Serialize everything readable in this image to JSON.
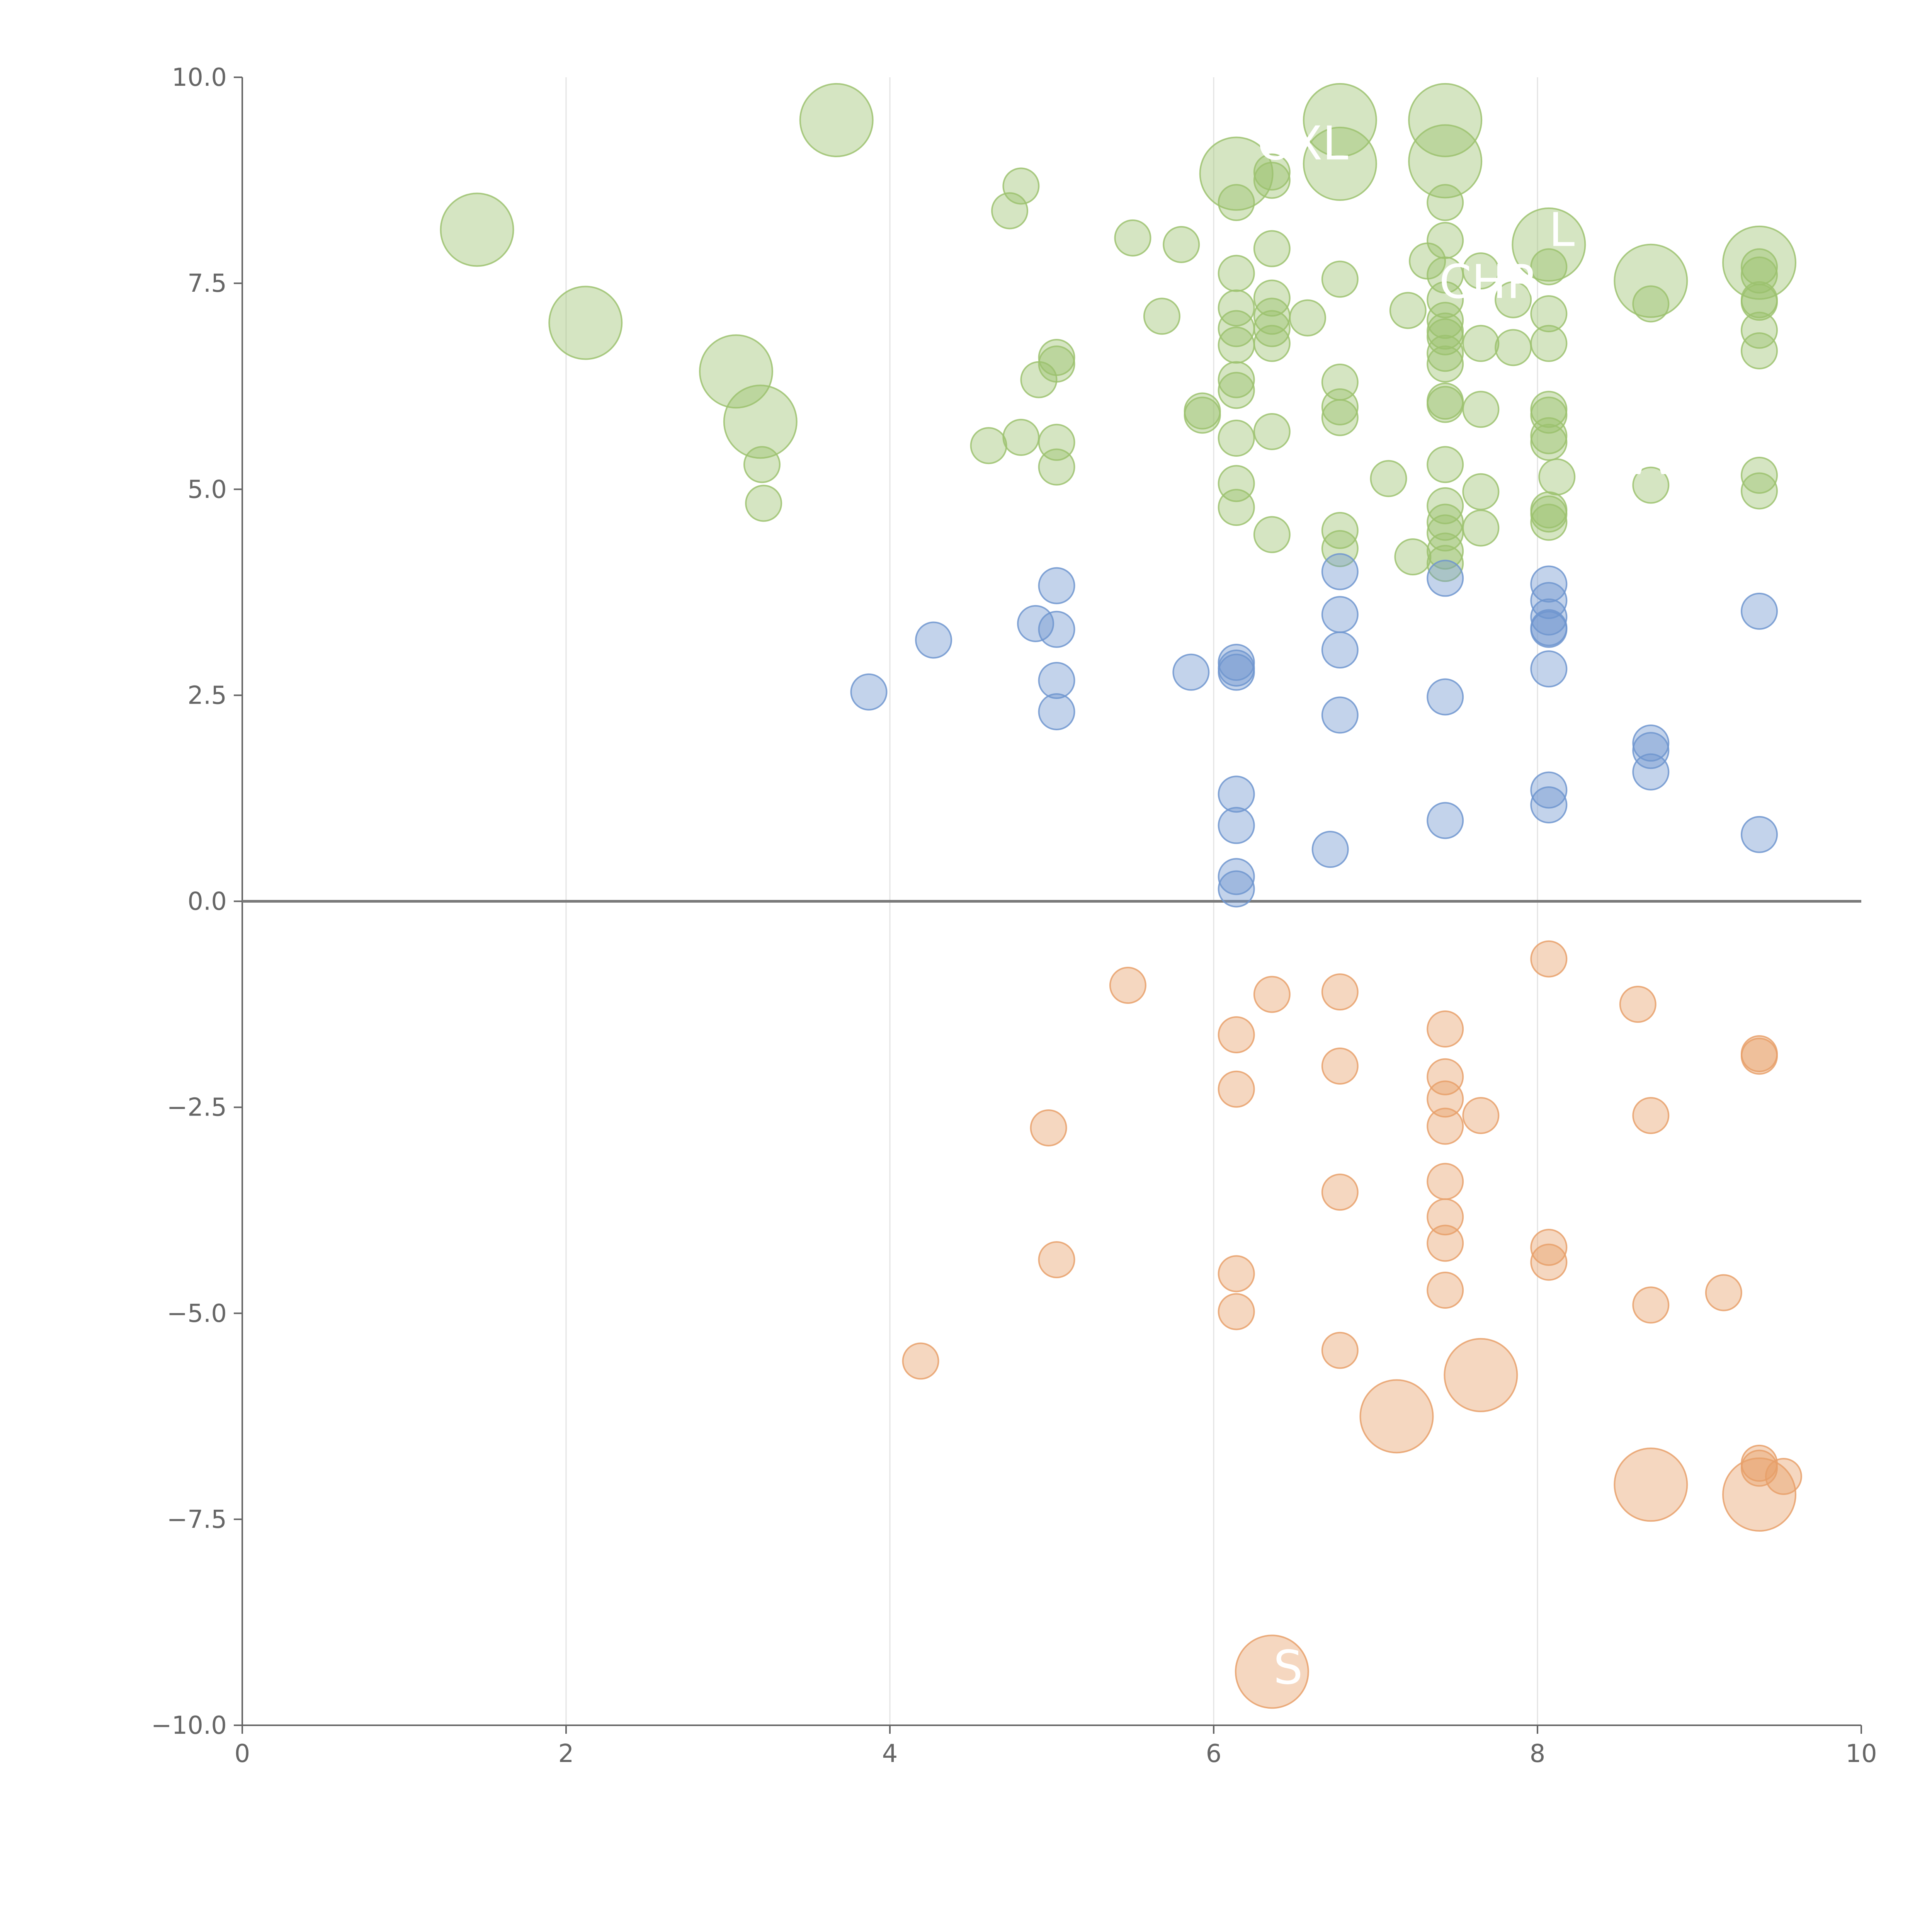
{
  "chart_data": {
    "type": "scatter",
    "title": "",
    "xlabel": "",
    "ylabel": "",
    "xlim": [
      0,
      10
    ],
    "ylim": [
      -10,
      10
    ],
    "x_ticks": [
      "0",
      "2",
      "4",
      "6",
      "8",
      "10"
    ],
    "y_ticks": [
      "−10.0",
      "−7.5",
      "−5.0",
      "−2.5",
      "0.0",
      "2.5",
      "5.0",
      "7.5",
      "10.0"
    ],
    "grid": "vertical",
    "zero_line": true,
    "colors": {
      "green": "#9cc26e",
      "blue": "#6f95cf",
      "orange": "#e8a06a"
    },
    "series": [
      {
        "name": "green",
        "points": [
          [
            1.45,
            8.15,
            "lg"
          ],
          [
            2.12,
            7.02,
            "lg"
          ],
          [
            3.05,
            6.43,
            "lg"
          ],
          [
            3.2,
            5.82,
            "lg"
          ],
          [
            3.67,
            9.48,
            "lg"
          ],
          [
            3.21,
            5.3,
            "s"
          ],
          [
            3.22,
            4.83,
            "s"
          ],
          [
            4.74,
            8.38,
            "s"
          ],
          [
            4.81,
            8.68,
            "s"
          ],
          [
            4.61,
            5.53,
            "s"
          ],
          [
            4.81,
            5.63,
            "s"
          ],
          [
            4.92,
            6.33,
            "s"
          ],
          [
            5.03,
            6.6,
            "s"
          ],
          [
            5.03,
            6.52,
            "s"
          ],
          [
            5.03,
            5.57,
            "s"
          ],
          [
            5.03,
            5.27,
            "s"
          ],
          [
            5.5,
            8.05,
            "s"
          ],
          [
            5.68,
            7.1,
            "s"
          ],
          [
            5.8,
            7.97,
            "s"
          ],
          [
            5.93,
            5.95,
            "s"
          ],
          [
            5.93,
            5.9,
            "s"
          ],
          [
            6.14,
            8.83,
            "lg"
          ],
          [
            6.14,
            8.48,
            "s"
          ],
          [
            6.14,
            7.62,
            "s"
          ],
          [
            6.14,
            7.2,
            "s"
          ],
          [
            6.14,
            6.95,
            "s"
          ],
          [
            6.14,
            6.75,
            "s"
          ],
          [
            6.14,
            6.33,
            "s"
          ],
          [
            6.14,
            6.2,
            "s"
          ],
          [
            6.14,
            5.62,
            "s"
          ],
          [
            6.14,
            5.07,
            "s"
          ],
          [
            6.14,
            4.78,
            "s"
          ],
          [
            6.36,
            8.85,
            "s"
          ],
          [
            6.36,
            8.75,
            "s"
          ],
          [
            6.36,
            7.92,
            "s"
          ],
          [
            6.36,
            7.32,
            "s"
          ],
          [
            6.36,
            7.1,
            "s"
          ],
          [
            6.36,
            6.95,
            "s"
          ],
          [
            6.36,
            6.77,
            "s"
          ],
          [
            6.36,
            5.7,
            "s"
          ],
          [
            6.36,
            4.45,
            "s"
          ],
          [
            6.58,
            7.08,
            "s"
          ],
          [
            6.78,
            9.48,
            "lg"
          ],
          [
            6.78,
            8.95,
            "lg"
          ],
          [
            6.78,
            7.55,
            "s"
          ],
          [
            6.78,
            6.3,
            "s"
          ],
          [
            6.78,
            6.0,
            "s"
          ],
          [
            6.78,
            5.87,
            "s"
          ],
          [
            6.78,
            4.5,
            "s"
          ],
          [
            6.78,
            4.28,
            "s"
          ],
          [
            7.08,
            5.13,
            "s"
          ],
          [
            7.2,
            7.17,
            "s"
          ],
          [
            7.23,
            4.18,
            "s"
          ],
          [
            7.32,
            7.77,
            "s"
          ],
          [
            7.43,
            9.48,
            "lg"
          ],
          [
            7.43,
            8.98,
            "lg"
          ],
          [
            7.43,
            8.48,
            "s"
          ],
          [
            7.43,
            8.02,
            "s"
          ],
          [
            7.43,
            7.6,
            "s"
          ],
          [
            7.43,
            7.3,
            "s"
          ],
          [
            7.43,
            7.05,
            "s"
          ],
          [
            7.43,
            6.92,
            "s"
          ],
          [
            7.43,
            6.85,
            "s"
          ],
          [
            7.43,
            6.65,
            "s"
          ],
          [
            7.43,
            6.52,
            "s"
          ],
          [
            7.43,
            6.07,
            "s"
          ],
          [
            7.43,
            6.03,
            "s"
          ],
          [
            7.43,
            5.3,
            "s"
          ],
          [
            7.43,
            4.8,
            "s"
          ],
          [
            7.43,
            4.6,
            "s"
          ],
          [
            7.43,
            4.47,
            "s"
          ],
          [
            7.43,
            4.25,
            "s"
          ],
          [
            7.43,
            4.1,
            "s"
          ],
          [
            7.65,
            7.65,
            "s"
          ],
          [
            7.65,
            6.77,
            "s"
          ],
          [
            7.65,
            5.97,
            "s"
          ],
          [
            7.65,
            4.97,
            "s"
          ],
          [
            7.65,
            4.53,
            "s"
          ],
          [
            7.85,
            7.3,
            "s"
          ],
          [
            7.85,
            6.72,
            "s"
          ],
          [
            8.07,
            7.97,
            "lg"
          ],
          [
            8.07,
            7.7,
            "s"
          ],
          [
            8.07,
            7.13,
            "s"
          ],
          [
            8.07,
            6.77,
            "s"
          ],
          [
            8.07,
            5.97,
            "s"
          ],
          [
            8.07,
            5.9,
            "s"
          ],
          [
            8.07,
            5.65,
            "s"
          ],
          [
            8.07,
            5.57,
            "s"
          ],
          [
            8.07,
            4.75,
            "s"
          ],
          [
            8.07,
            4.7,
            "s"
          ],
          [
            8.07,
            4.6,
            "s"
          ],
          [
            8.12,
            5.15,
            "s"
          ],
          [
            8.7,
            7.53,
            "lg"
          ],
          [
            8.7,
            7.25,
            "s"
          ],
          [
            8.7,
            5.05,
            "s"
          ],
          [
            9.37,
            7.75,
            "lg"
          ],
          [
            9.37,
            7.7,
            "s"
          ],
          [
            9.37,
            7.6,
            "s"
          ],
          [
            9.37,
            7.3,
            "s"
          ],
          [
            9.37,
            7.27,
            "s"
          ],
          [
            9.37,
            6.93,
            "s"
          ],
          [
            9.37,
            6.68,
            "s"
          ],
          [
            9.37,
            5.17,
            "s"
          ],
          [
            9.37,
            4.98,
            "s"
          ]
        ]
      },
      {
        "name": "blue",
        "points": [
          [
            3.87,
            2.54,
            "s"
          ],
          [
            4.27,
            3.17,
            "s"
          ],
          [
            4.9,
            3.37,
            "s"
          ],
          [
            5.03,
            3.83,
            "s"
          ],
          [
            5.03,
            3.3,
            "s"
          ],
          [
            5.03,
            2.68,
            "s"
          ],
          [
            5.03,
            2.3,
            "s"
          ],
          [
            5.86,
            2.78,
            "s"
          ],
          [
            6.14,
            2.9,
            "s"
          ],
          [
            6.14,
            2.83,
            "s"
          ],
          [
            6.14,
            2.78,
            "s"
          ],
          [
            6.14,
            1.3,
            "s"
          ],
          [
            6.14,
            0.92,
            "s"
          ],
          [
            6.14,
            0.3,
            "s"
          ],
          [
            6.14,
            0.15,
            "s"
          ],
          [
            6.72,
            0.63,
            "s"
          ],
          [
            6.78,
            4.0,
            "s"
          ],
          [
            6.78,
            3.48,
            "s"
          ],
          [
            6.78,
            3.05,
            "s"
          ],
          [
            6.78,
            2.26,
            "s"
          ],
          [
            7.43,
            3.92,
            "s"
          ],
          [
            7.43,
            2.48,
            "s"
          ],
          [
            7.43,
            0.98,
            "s"
          ],
          [
            8.07,
            3.85,
            "s"
          ],
          [
            8.07,
            3.65,
            "s"
          ],
          [
            8.07,
            3.45,
            "s"
          ],
          [
            8.07,
            3.32,
            "s"
          ],
          [
            8.07,
            3.3,
            "s"
          ],
          [
            8.07,
            2.82,
            "s"
          ],
          [
            8.07,
            1.35,
            "s"
          ],
          [
            8.07,
            1.17,
            "s"
          ],
          [
            8.7,
            1.92,
            "s"
          ],
          [
            8.7,
            1.83,
            "s"
          ],
          [
            8.7,
            1.57,
            "s"
          ],
          [
            9.37,
            3.52,
            "s"
          ],
          [
            9.37,
            0.81,
            "s"
          ]
        ]
      },
      {
        "name": "orange",
        "points": [
          [
            4.19,
            -5.58,
            "s"
          ],
          [
            4.98,
            -2.75,
            "s"
          ],
          [
            5.03,
            -4.35,
            "s"
          ],
          [
            5.47,
            -1.02,
            "s"
          ],
          [
            6.14,
            -1.62,
            "s"
          ],
          [
            6.14,
            -2.28,
            "s"
          ],
          [
            6.14,
            -4.52,
            "s"
          ],
          [
            6.14,
            -4.98,
            "s"
          ],
          [
            6.36,
            -1.13,
            "s"
          ],
          [
            6.36,
            -9.35,
            "lg"
          ],
          [
            6.78,
            -1.1,
            "s"
          ],
          [
            6.78,
            -2.0,
            "s"
          ],
          [
            6.78,
            -3.53,
            "s"
          ],
          [
            6.78,
            -5.45,
            "s"
          ],
          [
            7.13,
            -6.25,
            "lg"
          ],
          [
            7.43,
            -1.55,
            "s"
          ],
          [
            7.43,
            -2.13,
            "s"
          ],
          [
            7.43,
            -2.4,
            "s"
          ],
          [
            7.43,
            -2.73,
            "s"
          ],
          [
            7.43,
            -3.4,
            "s"
          ],
          [
            7.43,
            -3.83,
            "s"
          ],
          [
            7.43,
            -4.15,
            "s"
          ],
          [
            7.43,
            -4.72,
            "s"
          ],
          [
            7.65,
            -2.6,
            "s"
          ],
          [
            7.65,
            -5.75,
            "lg"
          ],
          [
            8.07,
            -0.7,
            "s"
          ],
          [
            8.07,
            -4.2,
            "s"
          ],
          [
            8.07,
            -4.38,
            "s"
          ],
          [
            8.62,
            -1.25,
            "s"
          ],
          [
            8.7,
            -2.6,
            "s"
          ],
          [
            8.7,
            -4.9,
            "s"
          ],
          [
            8.7,
            -7.08,
            "lg"
          ],
          [
            9.15,
            -4.75,
            "s"
          ],
          [
            9.37,
            -1.85,
            "s"
          ],
          [
            9.37,
            -1.88,
            "s"
          ],
          [
            9.37,
            -6.82,
            "s"
          ],
          [
            9.37,
            -6.88,
            "s"
          ],
          [
            9.37,
            -7.2,
            "lg"
          ],
          [
            9.52,
            -6.98,
            "s"
          ]
        ]
      }
    ],
    "annotations": [
      {
        "text": "OXL",
        "x": 6.55,
        "y": 9.2
      },
      {
        "text": "L",
        "x": 8.15,
        "y": 8.15
      },
      {
        "text": "CHR",
        "x": 7.7,
        "y": 7.52
      },
      {
        "text": "A",
        "x": 8.7,
        "y": 5.38
      },
      {
        "text": "S",
        "x": 6.46,
        "y": -9.3
      }
    ]
  }
}
